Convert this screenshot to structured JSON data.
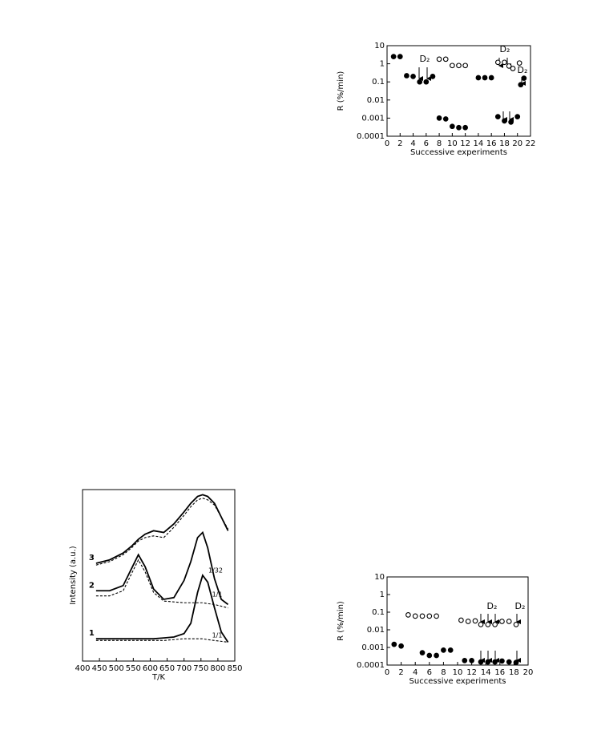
{
  "chart_data": [
    {
      "type": "scatter",
      "ylabel": "R (%/min)",
      "xlabel": "Successive experiments",
      "xlim": [
        0,
        22
      ],
      "xticks": [
        0,
        2,
        4,
        6,
        8,
        10,
        12,
        14,
        16,
        18,
        20,
        22
      ],
      "ylim": [
        0.0001,
        10
      ],
      "yticks": [
        0.0001,
        0.001,
        0.01,
        0.1,
        1,
        10
      ],
      "log_y": true,
      "annotations": [
        "D₂",
        "D₂",
        "D₂"
      ],
      "series": [
        {
          "color": "#000000",
          "filled": false,
          "x": [
            8,
            9,
            10,
            11,
            12,
            17,
            18,
            18.7,
            19.3,
            20.3
          ],
          "values": [
            1.8,
            1.8,
            0.8,
            0.8,
            0.8,
            1.2,
            1.2,
            0.75,
            0.55,
            1.1
          ]
        },
        {
          "color": "#000000",
          "filled": true,
          "x": [
            1,
            2,
            3,
            4,
            5,
            6,
            7,
            8,
            9,
            10,
            11,
            12,
            14,
            15,
            16,
            17,
            18,
            19,
            20,
            20.5,
            21
          ],
          "values": [
            2.5,
            2.5,
            0.22,
            0.2,
            0.1,
            0.1,
            0.2,
            0.001,
            0.0009,
            0.00035,
            0.0003,
            0.0003,
            0.17,
            0.17,
            0.17,
            0.0012,
            0.0007,
            0.0006,
            0.0012,
            0.07,
            0.16
          ]
        }
      ]
    },
    {
      "type": "line",
      "ylabel": "Intensity (a.u.)",
      "xlabel": "T/K",
      "xlim": [
        400,
        850
      ],
      "xticks": [
        400,
        450,
        500,
        550,
        600,
        650,
        700,
        750,
        800,
        850
      ],
      "ylim": [
        0,
        100
      ],
      "annotations": [
        "1/1",
        "1/1",
        "1/32"
      ],
      "x": [
        440,
        480,
        520,
        545,
        565,
        585,
        610,
        640,
        670,
        700,
        720,
        740,
        755,
        770,
        790,
        810,
        830
      ],
      "series": [
        {
          "name": "1",
          "color": "#000000",
          "dashed": false,
          "values": [
            13,
            13,
            13,
            13,
            13,
            13,
            13,
            13.5,
            14,
            16,
            22,
            40,
            50,
            46,
            31,
            17,
            11
          ]
        },
        {
          "color": "#000000",
          "dashed": true,
          "values": [
            12,
            12,
            12,
            12,
            12,
            12,
            12,
            12,
            12.5,
            13,
            13,
            13,
            13,
            12.5,
            12,
            11.5,
            11
          ]
        },
        {
          "name": "2",
          "color": "#000000",
          "dashed": false,
          "values": [
            41,
            41,
            44,
            54,
            62,
            55,
            42,
            36,
            37,
            47,
            58,
            72,
            75,
            66,
            48,
            36,
            33
          ]
        },
        {
          "color": "#000000",
          "dashed": true,
          "values": [
            38,
            38,
            41,
            51,
            59,
            52,
            40,
            35,
            34.5,
            34,
            34,
            34,
            34,
            33.5,
            33,
            32,
            31
          ]
        },
        {
          "name": "3",
          "color": "#000000",
          "dashed": false,
          "values": [
            57,
            59,
            63,
            67,
            71,
            74,
            76,
            75,
            80,
            87,
            92,
            96,
            97,
            96,
            92,
            84,
            76
          ]
        },
        {
          "color": "#000000",
          "dashed": true,
          "values": [
            56,
            58,
            62,
            66,
            70,
            72,
            73,
            72,
            78,
            85,
            90,
            94,
            95,
            94,
            91,
            84,
            77
          ]
        }
      ]
    },
    {
      "type": "scatter",
      "ylabel": "R (%/min)",
      "xlabel": "Successive experiments",
      "xlim": [
        0,
        20
      ],
      "xticks": [
        0,
        2,
        4,
        6,
        8,
        10,
        12,
        14,
        16,
        18,
        20
      ],
      "ylim": [
        0.0001,
        10
      ],
      "yticks": [
        0.0001,
        0.001,
        0.01,
        0.1,
        1,
        10
      ],
      "log_y": true,
      "annotations": [
        "D₂",
        "D₂"
      ],
      "series": [
        {
          "color": "#000000",
          "filled": false,
          "x": [
            3,
            4,
            5,
            6,
            7,
            10.5,
            11.5,
            12.5,
            13.3,
            14.3,
            15.3,
            16.3,
            17.3,
            18.3
          ],
          "values": [
            0.07,
            0.06,
            0.06,
            0.06,
            0.06,
            0.035,
            0.03,
            0.032,
            0.02,
            0.02,
            0.02,
            0.03,
            0.03,
            0.02
          ]
        },
        {
          "color": "#000000",
          "filled": true,
          "x": [
            1,
            2,
            5,
            6,
            7,
            8,
            9,
            11,
            12,
            13.3,
            14.3,
            15.3,
            16.3,
            17.3,
            18.3
          ],
          "values": [
            0.0015,
            0.0012,
            0.0005,
            0.00035,
            0.00035,
            0.0007,
            0.0007,
            0.00018,
            0.00018,
            0.00015,
            0.00015,
            0.00015,
            0.00017,
            0.00015,
            0.00014
          ]
        }
      ]
    }
  ]
}
